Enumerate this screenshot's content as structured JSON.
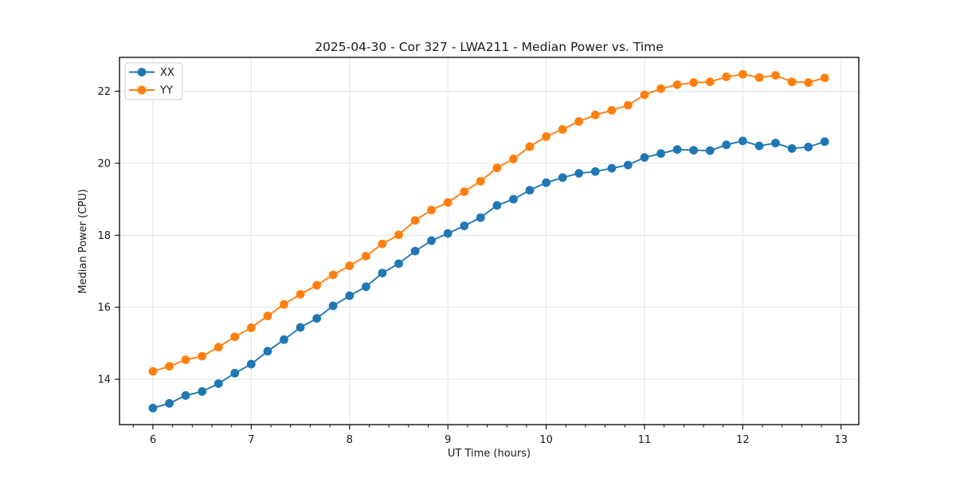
{
  "chart_data": {
    "type": "line",
    "title": "2025-04-30 - Cor 327 - LWA211 - Median Power vs. Time",
    "xlabel": "UT Time (hours)",
    "ylabel": "Median Power (CPU)",
    "xlim": [
      5.66,
      13.18
    ],
    "ylim": [
      12.74,
      22.94
    ],
    "x_ticks": [
      6,
      7,
      8,
      9,
      10,
      11,
      12,
      13
    ],
    "y_ticks": [
      14,
      16,
      18,
      20,
      22
    ],
    "x_minor_step": 0.2,
    "grid": true,
    "legend_position": "upper-left",
    "x": [
      6.0,
      6.167,
      6.333,
      6.5,
      6.667,
      6.833,
      7.0,
      7.167,
      7.333,
      7.5,
      7.667,
      7.833,
      8.0,
      8.167,
      8.333,
      8.5,
      8.667,
      8.833,
      9.0,
      9.167,
      9.333,
      9.5,
      9.667,
      9.833,
      10.0,
      10.167,
      10.333,
      10.5,
      10.667,
      10.833,
      11.0,
      11.167,
      11.333,
      11.5,
      11.667,
      11.833,
      12.0,
      12.167,
      12.333,
      12.5,
      12.667,
      12.833
    ],
    "series": [
      {
        "name": "XX",
        "color": "#1f77b4",
        "values": [
          13.2,
          13.33,
          13.55,
          13.66,
          13.88,
          14.17,
          14.42,
          14.78,
          15.1,
          15.44,
          15.69,
          16.04,
          16.32,
          16.57,
          16.95,
          17.21,
          17.56,
          17.85,
          18.05,
          18.26,
          18.49,
          18.83,
          19.0,
          19.25,
          19.46,
          19.6,
          19.72,
          19.77,
          19.86,
          19.95,
          20.16,
          20.27,
          20.38,
          20.36,
          20.35,
          20.51,
          20.62,
          20.48,
          20.56,
          20.41,
          20.45,
          20.6
        ]
      },
      {
        "name": "YY",
        "color": "#ff7f0e",
        "values": [
          14.22,
          14.36,
          14.54,
          14.64,
          14.89,
          15.18,
          15.43,
          15.76,
          16.08,
          16.36,
          16.61,
          16.9,
          17.15,
          17.42,
          17.76,
          18.01,
          18.41,
          18.7,
          18.91,
          19.21,
          19.5,
          19.87,
          20.12,
          20.46,
          20.74,
          20.94,
          21.16,
          21.34,
          21.47,
          21.61,
          21.9,
          22.07,
          22.18,
          22.24,
          22.26,
          22.4,
          22.47,
          22.38,
          22.44,
          22.26,
          22.24,
          22.37
        ]
      }
    ]
  },
  "colors": {
    "background": "#ffffff",
    "spine": "#000000",
    "grid": "#e2e2e2",
    "text": "#1a1a1a",
    "legend_border": "#cccccc",
    "legend_fill": "#ffffff"
  }
}
